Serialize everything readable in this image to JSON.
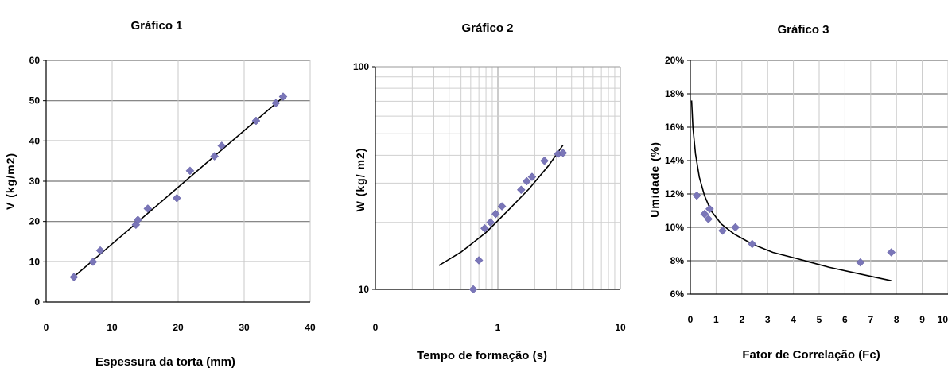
{
  "chart_data": [
    {
      "type": "scatter",
      "title": "Gráfico 1",
      "xlabel": "Espessura da torta (mm)",
      "ylabel": "V (kg/m2)",
      "xlim": [
        0,
        40
      ],
      "ylim": [
        0,
        60
      ],
      "x_ticks": [
        "0",
        "10",
        "20",
        "30",
        "40"
      ],
      "y_ticks": [
        "0",
        "10",
        "20",
        "30",
        "40",
        "50",
        "60"
      ],
      "grid": "horizontal",
      "marker_color": "#7a76b8",
      "points": [
        {
          "x": 4.2,
          "y": 6.2
        },
        {
          "x": 7.1,
          "y": 10.0
        },
        {
          "x": 8.2,
          "y": 12.8
        },
        {
          "x": 13.6,
          "y": 19.2
        },
        {
          "x": 13.9,
          "y": 20.4
        },
        {
          "x": 15.4,
          "y": 23.2
        },
        {
          "x": 19.8,
          "y": 25.8
        },
        {
          "x": 21.8,
          "y": 32.6
        },
        {
          "x": 25.5,
          "y": 36.2
        },
        {
          "x": 26.6,
          "y": 38.8
        },
        {
          "x": 31.8,
          "y": 45.0
        },
        {
          "x": 34.8,
          "y": 49.4
        },
        {
          "x": 35.9,
          "y": 51.0
        }
      ],
      "trendline": [
        {
          "x": 4,
          "y": 6
        },
        {
          "x": 36,
          "y": 51
        }
      ]
    },
    {
      "type": "scatter",
      "title": "Gráfico 2",
      "xlabel": "Tempo de formação (s)",
      "ylabel": "W (kg/ m2)",
      "x_scale": "log",
      "y_scale": "log",
      "xlim": [
        0.1,
        10
      ],
      "ylim": [
        10,
        100
      ],
      "x_ticks": [
        "0",
        "1",
        "10"
      ],
      "y_ticks": [
        "10",
        "100"
      ],
      "grid": "both",
      "marker_color": "#7a76b8",
      "points": [
        {
          "x": 0.63,
          "y": 10.0
        },
        {
          "x": 0.7,
          "y": 13.5
        },
        {
          "x": 0.78,
          "y": 18.8
        },
        {
          "x": 0.87,
          "y": 20.0
        },
        {
          "x": 0.96,
          "y": 21.8
        },
        {
          "x": 1.08,
          "y": 23.6
        },
        {
          "x": 1.55,
          "y": 28.0
        },
        {
          "x": 1.72,
          "y": 30.6
        },
        {
          "x": 1.9,
          "y": 32.0
        },
        {
          "x": 2.4,
          "y": 37.8
        },
        {
          "x": 3.1,
          "y": 40.6
        },
        {
          "x": 3.4,
          "y": 41.0
        }
      ],
      "trendline": [
        {
          "x": 0.33,
          "y": 12.8
        },
        {
          "x": 0.5,
          "y": 14.7
        },
        {
          "x": 0.8,
          "y": 18.0
        },
        {
          "x": 1.2,
          "y": 22.5
        },
        {
          "x": 1.8,
          "y": 28.3
        },
        {
          "x": 2.6,
          "y": 36.0
        },
        {
          "x": 3.4,
          "y": 44.4
        }
      ]
    },
    {
      "type": "scatter",
      "title": "Gráfico 3",
      "xlabel": "Fator de Correlação (Fc)",
      "ylabel": "Umidade (%)",
      "xlim": [
        0,
        10
      ],
      "ylim": [
        6,
        20
      ],
      "x_ticks": [
        "0",
        "1",
        "2",
        "3",
        "4",
        "5",
        "6",
        "7",
        "8",
        "9",
        "10"
      ],
      "y_ticks": [
        "6%",
        "8%",
        "10%",
        "12%",
        "14%",
        "16%",
        "18%",
        "20%"
      ],
      "grid": "horizontal",
      "marker_color": "#7a76b8",
      "points": [
        {
          "x": 0.25,
          "y": 11.9
        },
        {
          "x": 0.55,
          "y": 10.8
        },
        {
          "x": 0.7,
          "y": 10.5
        },
        {
          "x": 0.75,
          "y": 11.1
        },
        {
          "x": 1.25,
          "y": 9.8
        },
        {
          "x": 1.75,
          "y": 10.0
        },
        {
          "x": 2.4,
          "y": 9.0
        },
        {
          "x": 6.6,
          "y": 7.9
        },
        {
          "x": 7.8,
          "y": 8.5
        }
      ],
      "trendline": [
        {
          "x": 0.05,
          "y": 17.6
        },
        {
          "x": 0.1,
          "y": 16.0
        },
        {
          "x": 0.2,
          "y": 14.4
        },
        {
          "x": 0.35,
          "y": 13.0
        },
        {
          "x": 0.55,
          "y": 11.9
        },
        {
          "x": 0.8,
          "y": 11.0
        },
        {
          "x": 1.2,
          "y": 10.2
        },
        {
          "x": 1.7,
          "y": 9.6
        },
        {
          "x": 2.4,
          "y": 9.0
        },
        {
          "x": 3.2,
          "y": 8.5
        },
        {
          "x": 4.2,
          "y": 8.1
        },
        {
          "x": 5.4,
          "y": 7.6
        },
        {
          "x": 6.6,
          "y": 7.2
        },
        {
          "x": 7.8,
          "y": 6.8
        }
      ]
    }
  ]
}
